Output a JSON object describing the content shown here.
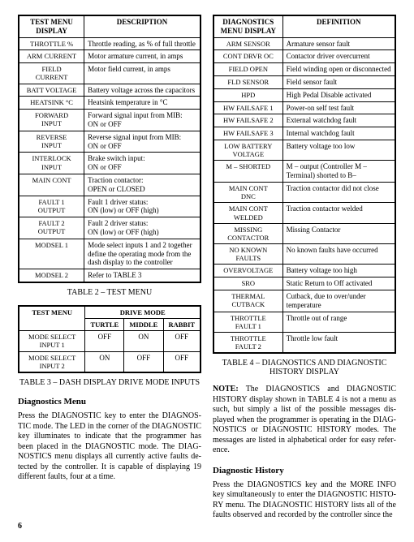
{
  "table2": {
    "head": {
      "col1": "TEST\nMENU DISPLAY",
      "col2": "DESCRIPTION"
    },
    "rows": [
      {
        "c1": "THROTTLE %",
        "c2": "Throttle reading, as % of full throttle"
      },
      {
        "c1": "ARM CURRENT",
        "c2": "Motor armature current, in amps"
      },
      {
        "c1": "FIELD\nCURRENT",
        "c2": "Motor field current, in amps"
      },
      {
        "c1": "BATT VOLTAGE",
        "c2": "Battery voltage across the capacitors"
      },
      {
        "c1": "HEATSINK °C",
        "c2": "Heatsink temperature in °C"
      },
      {
        "c1": "FORWARD\nINPUT",
        "c2": "Forward signal input from MIB:\nON   or   OFF"
      },
      {
        "c1": "REVERSE\nINPUT",
        "c2": "Reverse signal input from MIB:\nON   or   OFF"
      },
      {
        "c1": "INTERLOCK\nINPUT",
        "c2": "Brake switch input:\nON   or   OFF"
      },
      {
        "c1": "MAIN CONT",
        "c2": "Traction contactor:\nOPEN   or   CLOSED"
      },
      {
        "c1": "FAULT 1\nOUTPUT",
        "c2": "Fault 1 driver status:\nON (low)   or   OFF (high)"
      },
      {
        "c1": "FAULT 2\nOUTPUT",
        "c2": "Fault 2 driver status:\nON (low)   or   OFF (high)"
      },
      {
        "c1": "MODSEL 1",
        "c2": "Mode select inputs 1 and 2 together define the operating mode from the dash display to the controller"
      },
      {
        "c1": "MODSEL 2",
        "c2": "Refer to TABLE 3"
      }
    ],
    "caption": "TABLE 2 – TEST MENU"
  },
  "table3": {
    "head": {
      "rowlabel": "TEST MENU",
      "group": "DRIVE MODE",
      "modes": [
        "TURTLE",
        "MIDDLE",
        "RABBIT"
      ]
    },
    "rows": [
      {
        "label": "MODE SELECT\nINPUT 1",
        "vals": [
          "OFF",
          "ON",
          "OFF"
        ]
      },
      {
        "label": "MODE SELECT\nINPUT 2",
        "vals": [
          "ON",
          "OFF",
          "OFF"
        ]
      }
    ],
    "caption": "TABLE 3 – DASH DISPLAY DRIVE MODE INPUTS"
  },
  "left_text": {
    "heading": "Diagnostics Menu",
    "para": "Press the DIAGNOSTIC key to enter the DIAGNOS­TIC mode. The LED in the corner of the DIAGNOSTIC key illuminates to indicate that the programmer has been placed in the DIAGNOSTIC mode. The DIAG­NOSTICS menu displays all currently active faults de­tected by the controller. It is capable of displaying 19 different faults, four at a time."
  },
  "table4": {
    "head": {
      "col1": "DIAGNOSTICS\nMENU DISPLAY",
      "col2": "DEFINITION"
    },
    "rows": [
      {
        "c1": "ARM SENSOR",
        "c2": "Armature sensor fault"
      },
      {
        "c1": "CONT DRVR OC",
        "c2": "Contactor driver overcurrent"
      },
      {
        "c1": "FIELD OPEN",
        "c2": "Field winding open or disconnected"
      },
      {
        "c1": "FLD SENSOR",
        "c2": "Field sensor fault"
      },
      {
        "c1": "HPD",
        "c2": "High Pedal Disable activated"
      },
      {
        "c1": "HW FAILSAFE 1",
        "c2": "Power-on self test fault"
      },
      {
        "c1": "HW FAILSAFE 2",
        "c2": "External watchdog fault"
      },
      {
        "c1": "HW FAILSAFE 3",
        "c2": "Internal watchdog fault"
      },
      {
        "c1": "LOW BATTERY\nVOLTAGE",
        "c2": "Battery voltage too low"
      },
      {
        "c1": "M – SHORTED",
        "c2": "M – output (Controller M – Terminal) shorted to B–"
      },
      {
        "c1": "MAIN CONT\nDNC",
        "c2": "Traction contactor did not close"
      },
      {
        "c1": "MAIN CONT\nWELDED",
        "c2": "Traction contactor welded"
      },
      {
        "c1": "MISSING\nCONTACTOR",
        "c2": "Missing Contactor"
      },
      {
        "c1": "NO KNOWN\nFAULTS",
        "c2": "No known faults have occurred"
      },
      {
        "c1": "OVERVOLTAGE",
        "c2": "Battery voltage too high"
      },
      {
        "c1": "SRO",
        "c2": "Static Return to Off activated"
      },
      {
        "c1": "THERMAL\nCUTBACK",
        "c2": "Cutback, due to over/under temperature"
      },
      {
        "c1": "THROTTLE\nFAULT 1",
        "c2": "Throttle out of range"
      },
      {
        "c1": "THROTTLE\nFAULT 2",
        "c2": "Throttle low fault"
      }
    ],
    "caption": "TABLE 4 – DIAGNOSTICS AND DIAGNOSTIC HISTORY DISPLAY"
  },
  "right_text": {
    "note_label": "NOTE:",
    "note_body": "The DIAGNOSTICS and DIAGNOSTIC HISTORY display shown in TABLE 4 is not a menu as such, but simply a list of the possible messages dis­played when the programmer is operating in the DIAG­NOSTICS or DIAGNOSTIC HISTORY modes. The messages are listed in alphabetical order for easy refer­ence.",
    "heading": "Diagnostic History",
    "para": "Press the DIAGNOSTICS key and the MORE INFO key simultaneously to enter the DIAGNOSTIC HISTO­RY menu. The DIAGNOSTIC HISTORY lists all of the faults observed and recorded by the controller since the"
  },
  "page_number": "6"
}
